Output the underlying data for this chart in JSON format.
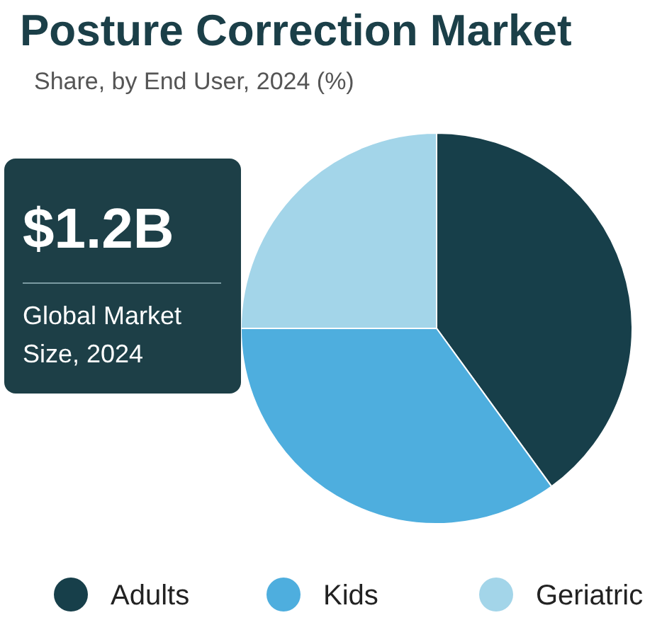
{
  "chart_data": {
    "type": "pie",
    "title": "Posture Correction Market",
    "subtitle": "Share, by End User, 2024 (%)",
    "categories": [
      "Adults",
      "Kids",
      "Geriatric"
    ],
    "values": [
      40,
      35,
      25
    ],
    "colors": [
      "#173f4a",
      "#4eaede",
      "#a3d5e9"
    ],
    "annotations": [
      "$1.2B",
      "Global Market Size, 2024"
    ],
    "legend": "bottom"
  }
}
